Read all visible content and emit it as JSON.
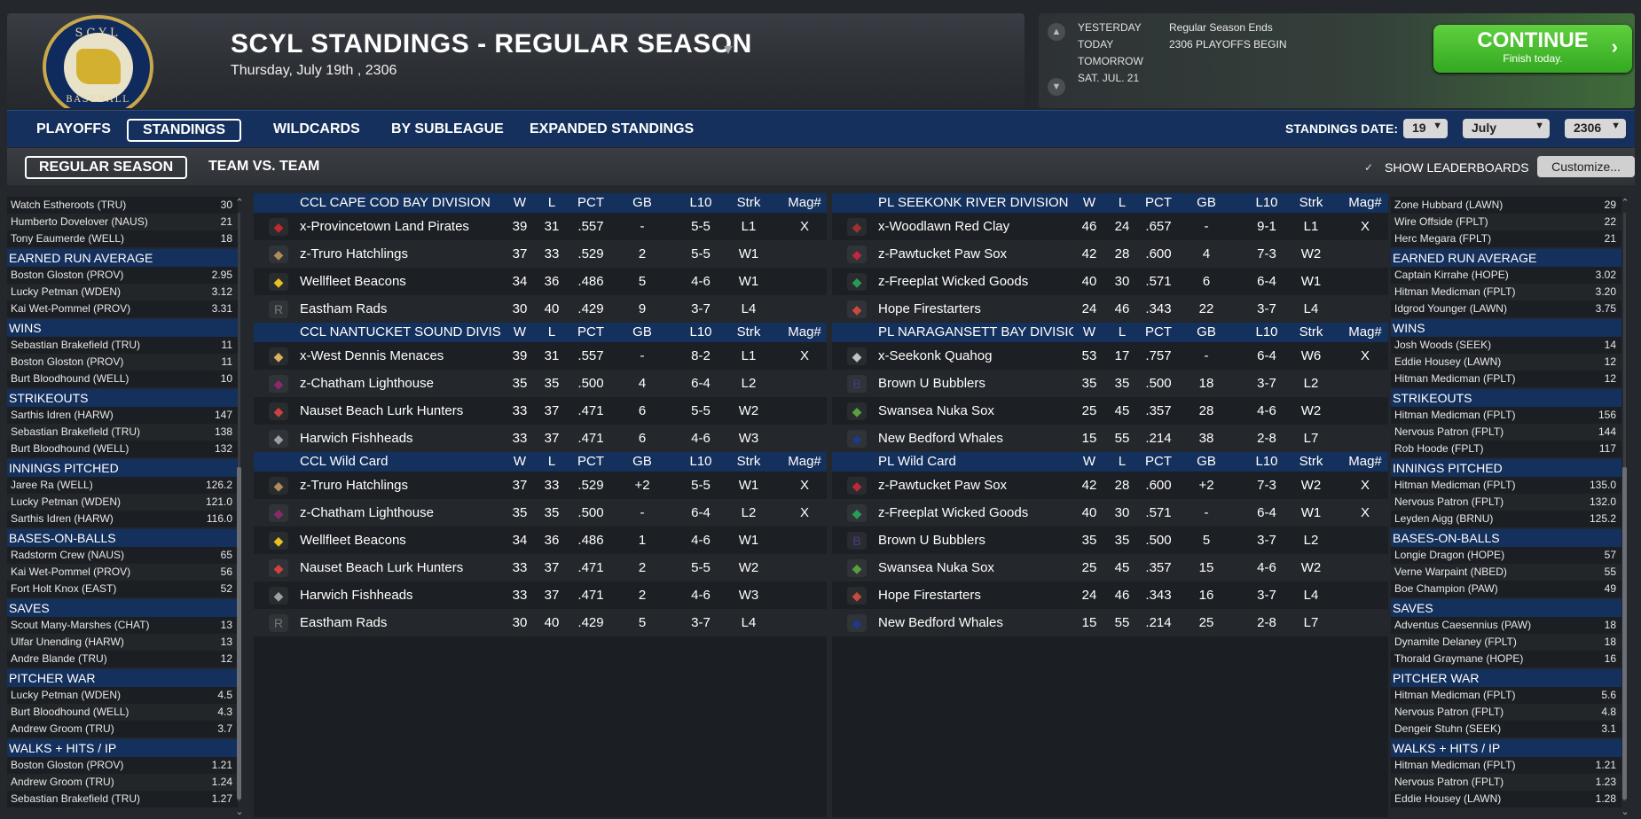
{
  "header": {
    "title": "SCYL STANDINGS - REGULAR SEASON",
    "date": "Thursday, July 19th , 2306",
    "logo_top": "SCYL",
    "logo_bottom": "BASEBALL"
  },
  "calendar": {
    "labels": [
      "YESTERDAY",
      "TODAY",
      "TOMORROW",
      "SAT. JUL. 21"
    ],
    "events": [
      "Regular Season Ends",
      "2306 PLAYOFFS BEGIN"
    ],
    "continue_label": "CONTINUE",
    "continue_sub": "Finish today."
  },
  "tabs": [
    "PLAYOFFS",
    "STANDINGS",
    "WILDCARDS",
    "BY SUBLEAGUE",
    "EXPANDED STANDINGS"
  ],
  "standings_date": {
    "label": "STANDINGS DATE:",
    "day": "19",
    "month": "July",
    "year": "2306"
  },
  "subtabs": [
    "REGULAR SEASON",
    "TEAM VS. TEAM"
  ],
  "show_leaderboards": "SHOW LEADERBOARDS",
  "customize": "Customize...",
  "left_leaders": [
    {
      "head": null,
      "rows": [
        [
          "Watch Estheroots (TRU)",
          "30"
        ],
        [
          "Humberto Dovelover (NAUS)",
          "21"
        ],
        [
          "Tony Eaumerde (WELL)",
          "18"
        ]
      ]
    },
    {
      "head": "EARNED RUN AVERAGE",
      "rows": [
        [
          "Boston Gloston (PROV)",
          "2.95"
        ],
        [
          "Lucky Petman (WDEN)",
          "3.12"
        ],
        [
          "Kai Wet-Pommel (PROV)",
          "3.31"
        ]
      ]
    },
    {
      "head": "WINS",
      "rows": [
        [
          "Sebastian Brakefield (TRU)",
          "11"
        ],
        [
          "Boston Gloston (PROV)",
          "11"
        ],
        [
          "Burt Bloodhound (WELL)",
          "10"
        ]
      ]
    },
    {
      "head": "STRIKEOUTS",
      "rows": [
        [
          "Sarthis Idren (HARW)",
          "147"
        ],
        [
          "Sebastian Brakefield (TRU)",
          "138"
        ],
        [
          "Burt Bloodhound (WELL)",
          "132"
        ]
      ]
    },
    {
      "head": "INNINGS PITCHED",
      "rows": [
        [
          "Jaree Ra (WELL)",
          "126.2"
        ],
        [
          "Lucky Petman (WDEN)",
          "121.0"
        ],
        [
          "Sarthis Idren (HARW)",
          "116.0"
        ]
      ]
    },
    {
      "head": "BASES-ON-BALLS",
      "rows": [
        [
          "Radstorm Crew (NAUS)",
          "65"
        ],
        [
          "Kai Wet-Pommel (PROV)",
          "56"
        ],
        [
          "Fort Holt Knox (EAST)",
          "52"
        ]
      ]
    },
    {
      "head": "SAVES",
      "rows": [
        [
          "Scout Many-Marshes (CHAT)",
          "13"
        ],
        [
          "Ulfar Unending (HARW)",
          "13"
        ],
        [
          "Andre Blande (TRU)",
          "12"
        ]
      ]
    },
    {
      "head": "PITCHER WAR",
      "rows": [
        [
          "Lucky Petman (WDEN)",
          "4.5"
        ],
        [
          "Burt Bloodhound (WELL)",
          "4.3"
        ],
        [
          "Andrew Groom (TRU)",
          "3.7"
        ]
      ]
    },
    {
      "head": "WALKS + HITS / IP",
      "rows": [
        [
          "Boston Gloston (PROV)",
          "1.21"
        ],
        [
          "Andrew Groom (TRU)",
          "1.24"
        ],
        [
          "Sebastian Brakefield (TRU)",
          "1.27"
        ]
      ]
    }
  ],
  "right_leaders": [
    {
      "head": null,
      "rows": [
        [
          "Zone Hubbard (LAWN)",
          "29"
        ],
        [
          "Wire Offside (FPLT)",
          "22"
        ],
        [
          "Herc Megara (FPLT)",
          "21"
        ]
      ]
    },
    {
      "head": "EARNED RUN AVERAGE",
      "rows": [
        [
          "Captain Kirrahe (HOPE)",
          "3.02"
        ],
        [
          "Hitman Medicman (FPLT)",
          "3.20"
        ],
        [
          "Idgrod Younger (LAWN)",
          "3.75"
        ]
      ]
    },
    {
      "head": "WINS",
      "rows": [
        [
          "Josh Woods (SEEK)",
          "14"
        ],
        [
          "Eddie Housey (LAWN)",
          "12"
        ],
        [
          "Hitman Medicman (FPLT)",
          "12"
        ]
      ]
    },
    {
      "head": "STRIKEOUTS",
      "rows": [
        [
          "Hitman Medicman (FPLT)",
          "156"
        ],
        [
          "Nervous Patron (FPLT)",
          "144"
        ],
        [
          "Rob Hoode (FPLT)",
          "117"
        ]
      ]
    },
    {
      "head": "INNINGS PITCHED",
      "rows": [
        [
          "Hitman Medicman (FPLT)",
          "135.0"
        ],
        [
          "Nervous Patron (FPLT)",
          "132.0"
        ],
        [
          "Leyden Aigg (BRNU)",
          "125.2"
        ]
      ]
    },
    {
      "head": "BASES-ON-BALLS",
      "rows": [
        [
          "Longie Dragon (HOPE)",
          "57"
        ],
        [
          "Verne Warpaint (NBED)",
          "55"
        ],
        [
          "Boe Champion (PAW)",
          "49"
        ]
      ]
    },
    {
      "head": "SAVES",
      "rows": [
        [
          "Adventus Caesennius (PAW)",
          "18"
        ],
        [
          "Dynamite Delaney (FPLT)",
          "18"
        ],
        [
          "Thorald Graymane (HOPE)",
          "16"
        ]
      ]
    },
    {
      "head": "PITCHER WAR",
      "rows": [
        [
          "Hitman Medicman (FPLT)",
          "5.6"
        ],
        [
          "Nervous Patron (FPLT)",
          "4.8"
        ],
        [
          "Dengeir Stuhn (SEEK)",
          "3.1"
        ]
      ]
    },
    {
      "head": "WALKS + HITS / IP",
      "rows": [
        [
          "Hitman Medicman (FPLT)",
          "1.21"
        ],
        [
          "Nervous Patron (FPLT)",
          "1.23"
        ],
        [
          "Eddie Housey (LAWN)",
          "1.28"
        ]
      ]
    }
  ],
  "columns": [
    "W",
    "L",
    "PCT",
    "GB",
    "L10",
    "Strk",
    "Mag#"
  ],
  "left_divisions": [
    {
      "name": "CCL CAPE COD BAY DIVISION",
      "teams": [
        {
          "logo": "flag",
          "color": "#c0282d",
          "name": "x-Provincetown Land Pirates",
          "w": "39",
          "l": "31",
          "pct": ".557",
          "gb": "-",
          "l10": "5-5",
          "strk": "L1",
          "mag": "X"
        },
        {
          "logo": "umbrella",
          "color": "#b08a5a",
          "name": "z-Truro Hatchlings",
          "w": "37",
          "l": "33",
          "pct": ".529",
          "gb": "2",
          "l10": "5-5",
          "strk": "W1",
          "mag": ""
        },
        {
          "logo": "helmet",
          "color": "#e8c020",
          "name": "Wellfleet Beacons",
          "w": "34",
          "l": "36",
          "pct": ".486",
          "gb": "5",
          "l10": "4-6",
          "strk": "W1",
          "mag": ""
        },
        {
          "logo": "rads",
          "color": "#777",
          "name": "Eastham Rads",
          "w": "30",
          "l": "40",
          "pct": ".429",
          "gb": "9",
          "l10": "3-7",
          "strk": "L4",
          "mag": ""
        }
      ]
    },
    {
      "name": "CCL NANTUCKET SOUND DIVISION",
      "teams": [
        {
          "logo": "menace",
          "color": "#d8b060",
          "name": "x-West Dennis Menaces",
          "w": "39",
          "l": "31",
          "pct": ".557",
          "gb": "-",
          "l10": "8-2",
          "strk": "L1",
          "mag": "X"
        },
        {
          "logo": "lighthouse",
          "color": "#8a2a6a",
          "name": "z-Chatham Lighthouse",
          "w": "35",
          "l": "35",
          "pct": ".500",
          "gb": "4",
          "l10": "6-4",
          "strk": "L2",
          "mag": ""
        },
        {
          "logo": "lobster",
          "color": "#d04040",
          "name": "Nauset Beach Lurk Hunters",
          "w": "33",
          "l": "37",
          "pct": ".471",
          "gb": "6",
          "l10": "5-5",
          "strk": "W2",
          "mag": ""
        },
        {
          "logo": "fish",
          "color": "#9aa0a8",
          "name": "Harwich Fishheads",
          "w": "33",
          "l": "37",
          "pct": ".471",
          "gb": "6",
          "l10": "4-6",
          "strk": "W3",
          "mag": ""
        }
      ]
    },
    {
      "name": "CCL  Wild Card",
      "teams": [
        {
          "logo": "umbrella",
          "color": "#b08a5a",
          "name": "z-Truro Hatchlings",
          "w": "37",
          "l": "33",
          "pct": ".529",
          "gb": "+2",
          "l10": "5-5",
          "strk": "W1",
          "mag": "X"
        },
        {
          "logo": "lighthouse",
          "color": "#8a2a6a",
          "name": "z-Chatham Lighthouse",
          "w": "35",
          "l": "35",
          "pct": ".500",
          "gb": "-",
          "l10": "6-4",
          "strk": "L2",
          "mag": "X"
        },
        {
          "logo": "helmet",
          "color": "#e8c020",
          "name": "Wellfleet Beacons",
          "w": "34",
          "l": "36",
          "pct": ".486",
          "gb": "1",
          "l10": "4-6",
          "strk": "W1",
          "mag": ""
        },
        {
          "logo": "lobster",
          "color": "#d04040",
          "name": "Nauset Beach Lurk Hunters",
          "w": "33",
          "l": "37",
          "pct": ".471",
          "gb": "2",
          "l10": "5-5",
          "strk": "W2",
          "mag": ""
        },
        {
          "logo": "fish",
          "color": "#9aa0a8",
          "name": "Harwich Fishheads",
          "w": "33",
          "l": "37",
          "pct": ".471",
          "gb": "2",
          "l10": "4-6",
          "strk": "W3",
          "mag": ""
        },
        {
          "logo": "rads",
          "color": "#777",
          "name": "Eastham Rads",
          "w": "30",
          "l": "40",
          "pct": ".429",
          "gb": "5",
          "l10": "3-7",
          "strk": "L4",
          "mag": ""
        }
      ]
    }
  ],
  "right_divisions": [
    {
      "name": "PL SEEKONK RIVER DIVISION",
      "teams": [
        {
          "logo": "clay",
          "color": "#a03030",
          "name": "x-Woodlawn Red Clay",
          "w": "46",
          "l": "24",
          "pct": ".657",
          "gb": "-",
          "l10": "9-1",
          "strk": "L1",
          "mag": "X"
        },
        {
          "logo": "paw",
          "color": "#c0283a",
          "name": "z-Pawtucket Paw Sox",
          "w": "42",
          "l": "28",
          "pct": ".600",
          "gb": "4",
          "l10": "7-3",
          "strk": "W2",
          "mag": ""
        },
        {
          "logo": "plant",
          "color": "#2a9a5a",
          "name": "z-Freeplat Wicked Goods",
          "w": "40",
          "l": "30",
          "pct": ".571",
          "gb": "6",
          "l10": "6-4",
          "strk": "W1",
          "mag": ""
        },
        {
          "logo": "fire",
          "color": "#c84a3a",
          "name": "Hope Firestarters",
          "w": "24",
          "l": "46",
          "pct": ".343",
          "gb": "22",
          "l10": "3-7",
          "strk": "L4",
          "mag": ""
        }
      ]
    },
    {
      "name": "PL NARAGANSETT BAY DIVISION",
      "teams": [
        {
          "logo": "quahog",
          "color": "#c0c4c8",
          "name": "x-Seekonk Quahog",
          "w": "53",
          "l": "17",
          "pct": ".757",
          "gb": "-",
          "l10": "6-4",
          "strk": "W6",
          "mag": "X"
        },
        {
          "logo": "B",
          "color": "#4a3a8a",
          "name": "Brown U Bubblers",
          "w": "35",
          "l": "35",
          "pct": ".500",
          "gb": "18",
          "l10": "3-7",
          "strk": "L2",
          "mag": ""
        },
        {
          "logo": "nuka",
          "color": "#5aa03a",
          "name": "Swansea Nuka Sox",
          "w": "25",
          "l": "45",
          "pct": ".357",
          "gb": "28",
          "l10": "4-6",
          "strk": "W2",
          "mag": ""
        },
        {
          "logo": "whale",
          "color": "#1a3a8a",
          "name": "New Bedford Whales",
          "w": "15",
          "l": "55",
          "pct": ".214",
          "gb": "38",
          "l10": "2-8",
          "strk": "L7",
          "mag": ""
        }
      ]
    },
    {
      "name": "PL  Wild Card",
      "teams": [
        {
          "logo": "paw",
          "color": "#c0283a",
          "name": "z-Pawtucket Paw Sox",
          "w": "42",
          "l": "28",
          "pct": ".600",
          "gb": "+2",
          "l10": "7-3",
          "strk": "W2",
          "mag": "X"
        },
        {
          "logo": "plant",
          "color": "#2a9a5a",
          "name": "z-Freeplat Wicked Goods",
          "w": "40",
          "l": "30",
          "pct": ".571",
          "gb": "-",
          "l10": "6-4",
          "strk": "W1",
          "mag": "X"
        },
        {
          "logo": "B",
          "color": "#4a3a8a",
          "name": "Brown U Bubblers",
          "w": "35",
          "l": "35",
          "pct": ".500",
          "gb": "5",
          "l10": "3-7",
          "strk": "L2",
          "mag": ""
        },
        {
          "logo": "nuka",
          "color": "#5aa03a",
          "name": "Swansea Nuka Sox",
          "w": "25",
          "l": "45",
          "pct": ".357",
          "gb": "15",
          "l10": "4-6",
          "strk": "W2",
          "mag": ""
        },
        {
          "logo": "fire",
          "color": "#c84a3a",
          "name": "Hope Firestarters",
          "w": "24",
          "l": "46",
          "pct": ".343",
          "gb": "16",
          "l10": "3-7",
          "strk": "L4",
          "mag": ""
        },
        {
          "logo": "whale",
          "color": "#1a3a8a",
          "name": "New Bedford Whales",
          "w": "15",
          "l": "55",
          "pct": ".214",
          "gb": "25",
          "l10": "2-8",
          "strk": "L7",
          "mag": ""
        }
      ]
    }
  ]
}
